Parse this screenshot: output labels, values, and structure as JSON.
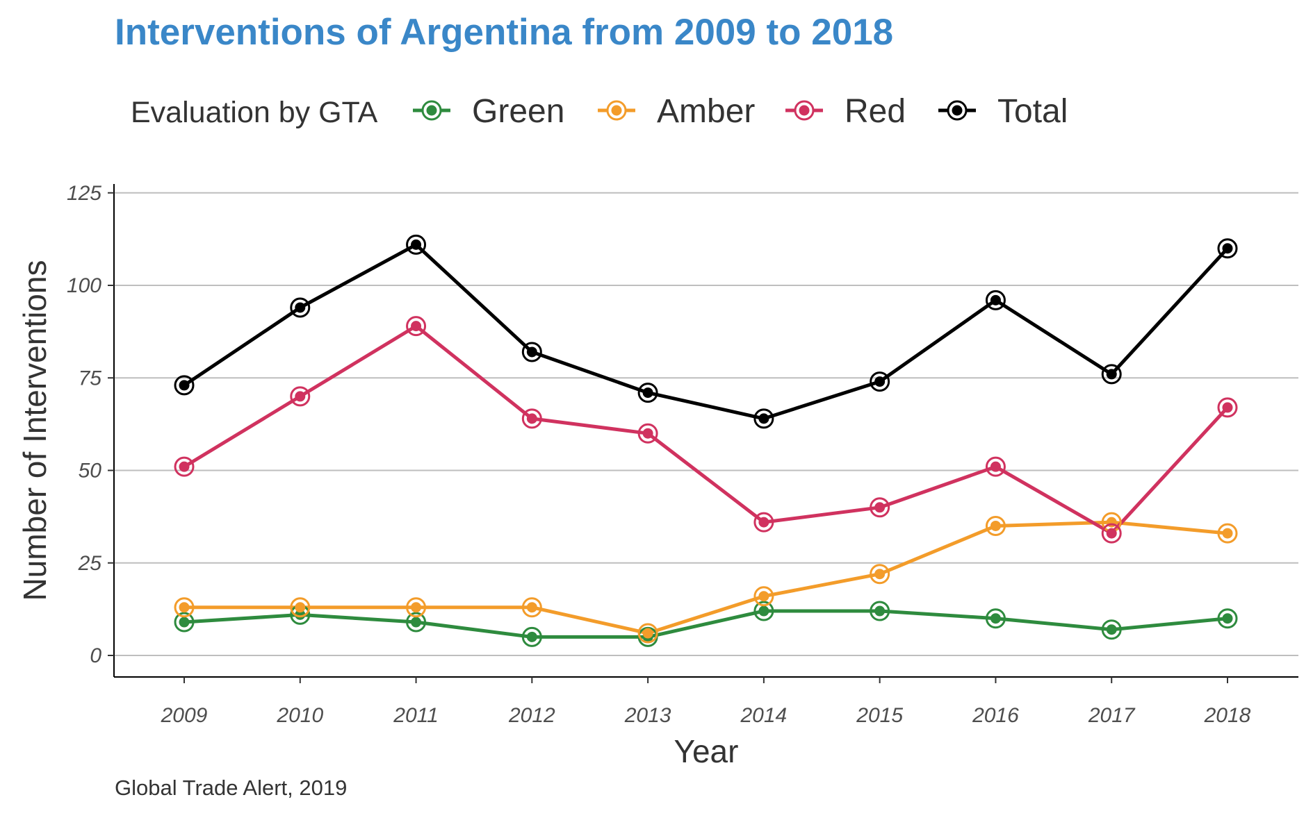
{
  "chart_data": {
    "type": "line",
    "title": "Interventions of Argentina from 2009 to 2018",
    "xlabel": "Year",
    "ylabel": "Number of Interventions",
    "caption": "Global Trade Alert, 2019",
    "legend_title": "Evaluation by GTA",
    "legend_position": "top",
    "grid": "horizontal major gridlines",
    "x": [
      2009,
      2010,
      2011,
      2012,
      2013,
      2014,
      2015,
      2016,
      2017,
      2018
    ],
    "x_tick_labels": [
      "2009",
      "2010",
      "2011",
      "2012",
      "2013",
      "2014",
      "2015",
      "2016",
      "2017",
      "2018"
    ],
    "ylim": [
      -6,
      128
    ],
    "y_ticks": [
      0,
      25,
      50,
      75,
      100,
      125
    ],
    "y_tick_labels": [
      "0",
      "25",
      "50",
      "75",
      "100",
      "125"
    ],
    "series": [
      {
        "name": "Green",
        "color": "#2e8b3e",
        "values": [
          9,
          11,
          9,
          5,
          5,
          12,
          12,
          10,
          7,
          10
        ]
      },
      {
        "name": "Amber",
        "color": "#f39c2a",
        "values": [
          13,
          13,
          13,
          13,
          6,
          16,
          22,
          35,
          36,
          33
        ]
      },
      {
        "name": "Red",
        "color": "#d0325f",
        "values": [
          51,
          70,
          89,
          64,
          60,
          36,
          40,
          51,
          33,
          67
        ]
      },
      {
        "name": "Total",
        "color": "#000000",
        "values": [
          73,
          94,
          111,
          82,
          71,
          64,
          74,
          96,
          76,
          110
        ]
      }
    ],
    "title_color": "#3a87c8",
    "gridline_color": "#bebebe"
  }
}
